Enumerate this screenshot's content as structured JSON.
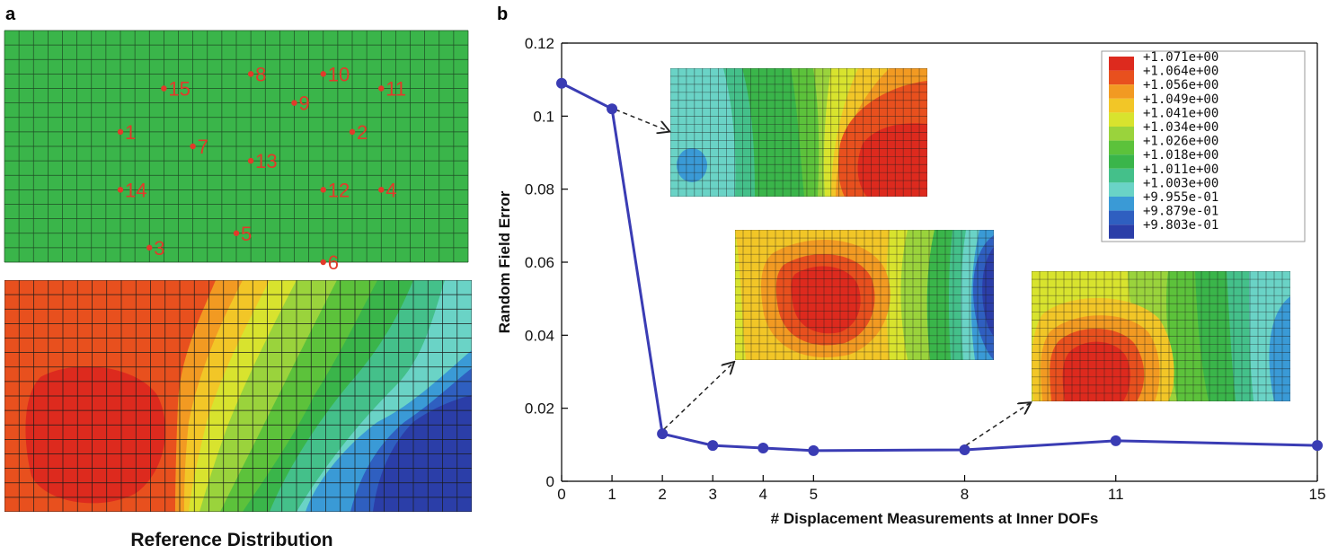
{
  "panel_a": {
    "label": "a",
    "caption": "Reference Distribution",
    "measurement_points": [
      {
        "label": "1",
        "col": 8,
        "row": 7
      },
      {
        "label": "2",
        "col": 24,
        "row": 7
      },
      {
        "label": "3",
        "col": 10,
        "row": 15
      },
      {
        "label": "4",
        "col": 26,
        "row": 11
      },
      {
        "label": "5",
        "col": 16,
        "row": 14
      },
      {
        "label": "6",
        "col": 22,
        "row": 16
      },
      {
        "label": "7",
        "col": 13,
        "row": 8
      },
      {
        "label": "8",
        "col": 17,
        "row": 3
      },
      {
        "label": "9",
        "col": 20,
        "row": 5
      },
      {
        "label": "10",
        "col": 22,
        "row": 3
      },
      {
        "label": "11",
        "col": 26,
        "row": 4
      },
      {
        "label": "12",
        "col": 22,
        "row": 11
      },
      {
        "label": "13",
        "col": 17,
        "row": 9
      },
      {
        "label": "14",
        "col": 8,
        "row": 11
      },
      {
        "label": "15",
        "col": 11,
        "row": 4
      }
    ]
  },
  "panel_b_label": "b",
  "colorbar": {
    "colors": [
      "#dd2a1e",
      "#e8501e",
      "#f29a22",
      "#f2c627",
      "#d8e32e",
      "#9ad33c",
      "#5cc23b",
      "#3ab54a",
      "#44c08a",
      "#6ad3c6",
      "#3a9ad6",
      "#2f5fc0",
      "#2b3ea8"
    ],
    "labels": [
      "+1.071e+00",
      "+1.064e+00",
      "+1.056e+00",
      "+1.049e+00",
      "+1.041e+00",
      "+1.034e+00",
      "+1.026e+00",
      "+1.018e+00",
      "+1.011e+00",
      "+1.003e+00",
      "+9.955e-01",
      "+9.879e-01",
      "+9.803e-01"
    ]
  },
  "chart_data": {
    "type": "line",
    "xlabel": "# Displacement  Measurements at Inner DOFs",
    "ylabel": "Random Field Error",
    "x_tick_labels": [
      "0",
      "1",
      "2",
      "3",
      "4",
      "5",
      "8",
      "11",
      "15"
    ],
    "y_ticks": [
      0,
      0.02,
      0.04,
      0.06,
      0.08,
      0.1,
      0.12
    ],
    "y_tick_labels": [
      "0",
      "0.02",
      "0.04",
      "0.06",
      "0.08",
      "0.1",
      "0.12"
    ],
    "ylim": [
      0,
      0.12
    ],
    "series": [
      {
        "color": "#3a3cb4",
        "x": [
          "0",
          "1",
          "2",
          "3",
          "4",
          "5",
          "8",
          "11",
          "15"
        ],
        "values": [
          0.109,
          0.102,
          0.013,
          0.0098,
          0.0091,
          0.0084,
          0.0086,
          0.0111,
          0.0098
        ]
      }
    ],
    "insets": [
      {
        "points_to": "1"
      },
      {
        "points_to": "2"
      },
      {
        "points_to": "8"
      }
    ]
  }
}
